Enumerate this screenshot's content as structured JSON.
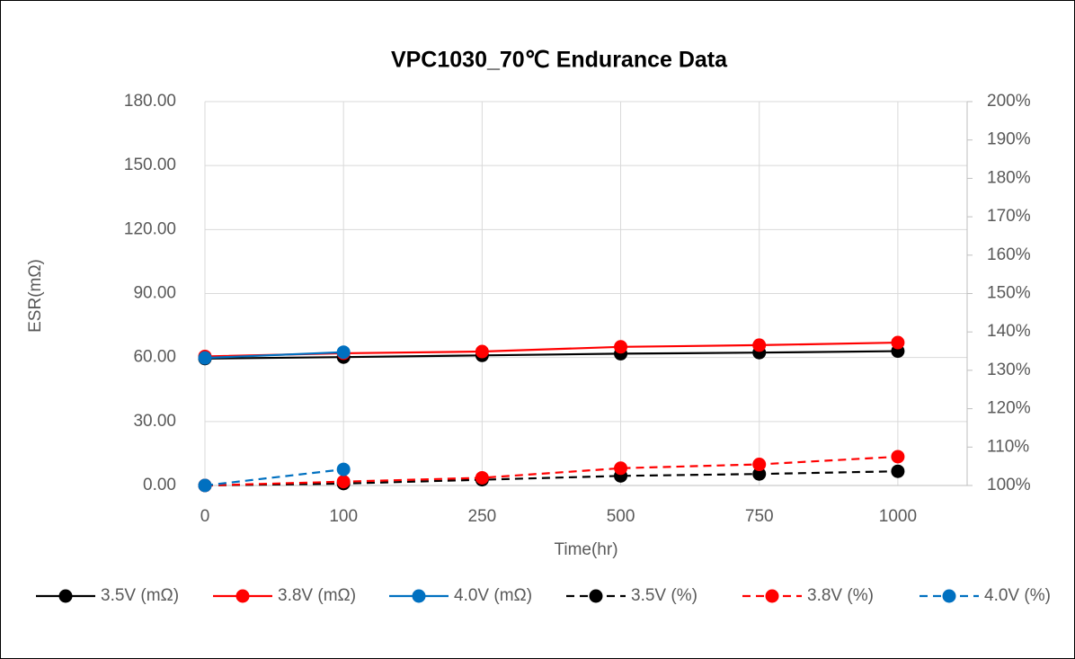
{
  "chart_data": {
    "type": "line",
    "title": "VPC1030_70℃ Endurance Data",
    "x_label": "Time(hr)",
    "y_label": "ESR(mΩ)",
    "categories": [
      "0",
      "100",
      "250",
      "500",
      "750",
      "1000"
    ],
    "ylim": [
      0,
      180
    ],
    "yticks": [
      {
        "value": 0,
        "label": "0.00"
      },
      {
        "value": 30,
        "label": "30.00"
      },
      {
        "value": 60,
        "label": "60.00"
      },
      {
        "value": 90,
        "label": "90.00"
      },
      {
        "value": 120,
        "label": "120.00"
      },
      {
        "value": 150,
        "label": "150.00"
      },
      {
        "value": 180,
        "label": "180.00"
      }
    ],
    "y2lim": [
      100,
      200
    ],
    "y2ticks": [
      {
        "value": 100,
        "label": "100%"
      },
      {
        "value": 110,
        "label": "110%"
      },
      {
        "value": 120,
        "label": "120%"
      },
      {
        "value": 130,
        "label": "130%"
      },
      {
        "value": 140,
        "label": "140%"
      },
      {
        "value": 150,
        "label": "150%"
      },
      {
        "value": 160,
        "label": "160%"
      },
      {
        "value": 170,
        "label": "170%"
      },
      {
        "value": 180,
        "label": "180%"
      },
      {
        "value": 190,
        "label": "190%"
      },
      {
        "value": 200,
        "label": "200%"
      }
    ],
    "grid": true,
    "legend": "bottom",
    "series": [
      {
        "name": "3.5V (mΩ)",
        "color": "#000000",
        "dash": false,
        "values": [
          59.5,
          60.2,
          61,
          61.8,
          62.3,
          63
        ]
      },
      {
        "name": "3.8V (mΩ)",
        "color": "#ff0000",
        "dash": false,
        "values": [
          60.5,
          62,
          62.8,
          65,
          65.8,
          67
        ]
      },
      {
        "name": "4.0V (mΩ)",
        "color": "#0070c0",
        "dash": false,
        "values": [
          59.8,
          62.5,
          null,
          null,
          null,
          null
        ]
      },
      {
        "name": "3.5V (%)",
        "color": "#000000",
        "dash": true,
        "axis": "y2",
        "values": [
          100,
          100.5,
          101.5,
          102.5,
          103,
          103.7
        ]
      },
      {
        "name": "3.8V (%)",
        "color": "#ff0000",
        "dash": true,
        "axis": "y2",
        "values": [
          100,
          101,
          102,
          104.5,
          105.5,
          107.5
        ]
      },
      {
        "name": "4.0V (%)",
        "color": "#0070c0",
        "dash": true,
        "axis": "y2",
        "values": [
          100,
          104.2,
          null,
          null,
          null,
          null
        ]
      }
    ]
  }
}
